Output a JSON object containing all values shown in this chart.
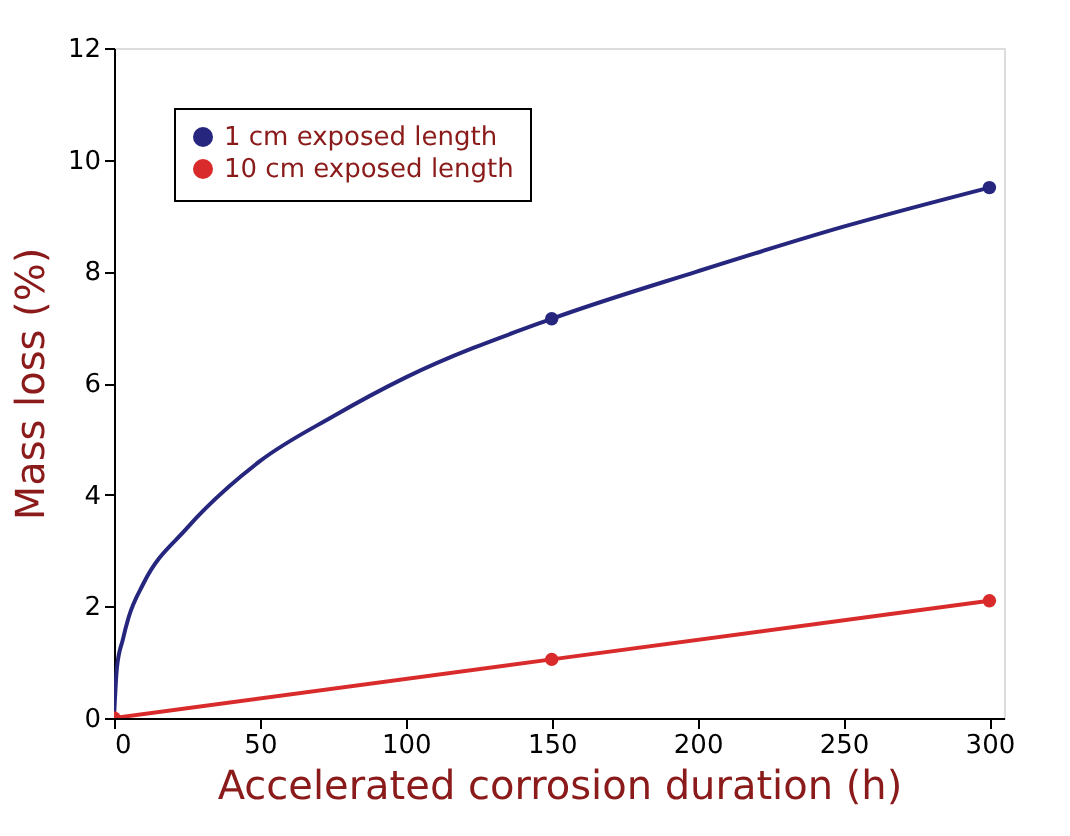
{
  "chart_data": {
    "type": "line",
    "xlabel": "Accelerated corrosion duration  (h)",
    "ylabel": "Mass loss (%)",
    "xlim": [
      0,
      305
    ],
    "xticks": [
      0,
      50,
      100,
      150,
      200,
      250,
      300
    ],
    "ylim": [
      0,
      12
    ],
    "yticks": [
      0,
      2,
      4,
      6,
      8,
      10,
      12
    ],
    "grid": false,
    "legend": "top left",
    "line_style": "solid",
    "series": [
      {
        "name": "1 cm exposed length",
        "type": "scatter",
        "marker": "circle",
        "color": "#26267e",
        "x": [
          150,
          300
        ],
        "values": [
          7.15,
          9.5
        ]
      },
      {
        "marker": "none",
        "color": "#26267e",
        "x": [
          0,
          1,
          3,
          5,
          10,
          25,
          50,
          75,
          100,
          150,
          200,
          250,
          300
        ],
        "values": [
          0,
          0.9,
          1.4,
          1.8,
          2.4,
          3.4,
          4.6,
          5.4,
          6.1,
          7.15,
          8.0,
          8.8,
          9.5
        ]
      },
      {
        "name": "10 cm exposed length",
        "type": "scatter",
        "marker": "circle",
        "color": "#d92b2b",
        "x": [
          0,
          150,
          300
        ],
        "values": [
          0,
          1.05,
          2.1
        ]
      },
      {
        "marker": "none",
        "color": "#d92b2b",
        "x": [
          0,
          150,
          300
        ],
        "values": [
          0,
          1.05,
          2.1
        ]
      }
    ]
  }
}
